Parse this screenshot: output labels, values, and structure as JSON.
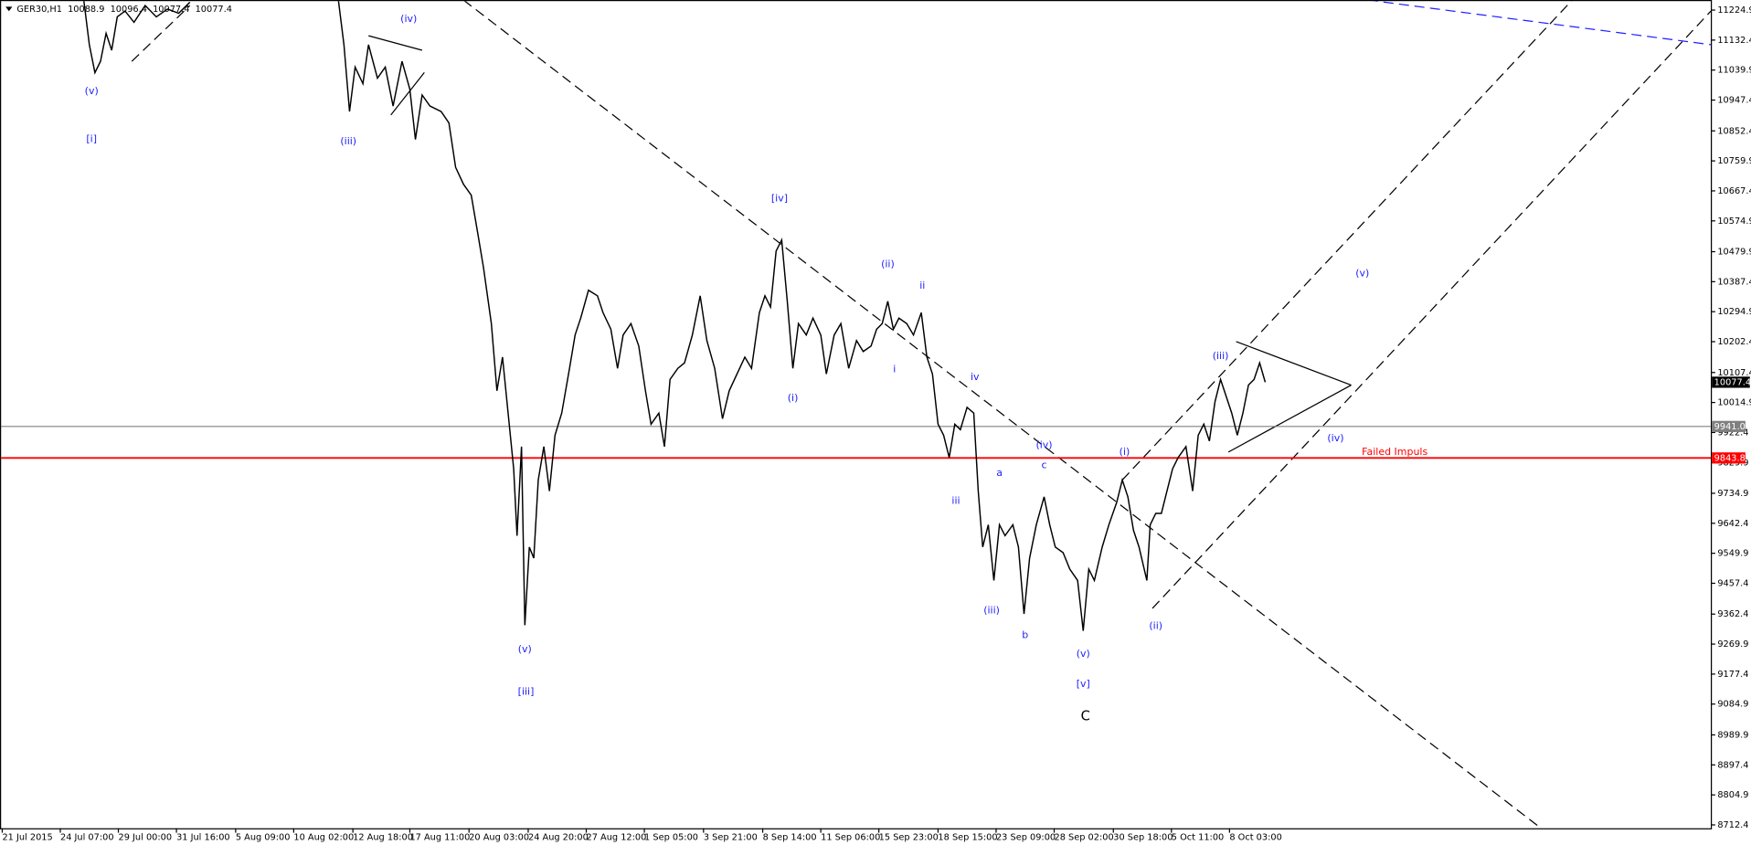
{
  "chart_data": {
    "type": "line",
    "title": "GER30,H1",
    "ohlc": [
      10088.9,
      10096.4,
      10077.4,
      10077.4
    ],
    "color": "#000000",
    "xlim": [
      0,
      1532
    ],
    "ylim": [
      8702,
      11256
    ],
    "xticks": [
      {
        "value": 2,
        "label": "21 Jul 2015"
      },
      {
        "value": 54,
        "label": "24 Jul 07:00"
      },
      {
        "value": 106,
        "label": "29 Jul 00:00"
      },
      {
        "value": 158,
        "label": "31 Jul 16:00"
      },
      {
        "value": 211,
        "label": "5 Aug 09:00"
      },
      {
        "value": 263,
        "label": "10 Aug 02:00"
      },
      {
        "value": 316,
        "label": "12 Aug 18:00"
      },
      {
        "value": 367,
        "label": "17 Aug 11:00"
      },
      {
        "value": 420,
        "label": "20 Aug 03:00"
      },
      {
        "value": 473,
        "label": "24 Aug 20:00"
      },
      {
        "value": 525,
        "label": "27 Aug 12:00"
      },
      {
        "value": 577,
        "label": "1 Sep 05:00"
      },
      {
        "value": 630,
        "label": "3 Sep 21:00"
      },
      {
        "value": 683,
        "label": "8 Sep 14:00"
      },
      {
        "value": 735,
        "label": "11 Sep 06:00"
      },
      {
        "value": 787,
        "label": "15 Sep 23:00"
      },
      {
        "value": 840,
        "label": "18 Sep 15:00"
      },
      {
        "value": 892,
        "label": "23 Sep 09:00"
      },
      {
        "value": 944,
        "label": "28 Sep 02:00"
      },
      {
        "value": 997,
        "label": "30 Sep 18:00"
      },
      {
        "value": 1049,
        "label": "5 Oct 11:00"
      },
      {
        "value": 1101,
        "label": "8 Oct 03:00"
      }
    ],
    "yticks": [
      11224.9,
      11132.4,
      11039.9,
      10947.4,
      10852.4,
      10759.9,
      10667.4,
      10574.9,
      10479.9,
      10387.4,
      10294.9,
      10202.4,
      10107.4,
      10014.9,
      9922.4,
      9829.9,
      9734.9,
      9642.4,
      9549.9,
      9457.4,
      9362.4,
      9269.9,
      9177.4,
      9084.9,
      8989.9,
      8897.4,
      8804.9,
      8712.4
    ],
    "last": 10077.4,
    "hlines": [
      {
        "value": 9941,
        "label": "9941.0",
        "color": "#808080"
      },
      {
        "value": 9843.8,
        "label": "9843.8",
        "color": "#ff0000"
      }
    ],
    "x": [
      75,
      80,
      85,
      90,
      95,
      100,
      105,
      112,
      120,
      130,
      140,
      150,
      160,
      170,
      240,
      303,
      308,
      313,
      318,
      325,
      330,
      338,
      345,
      352,
      360,
      367,
      372,
      378,
      385,
      395,
      402,
      408,
      415,
      422,
      428,
      433,
      440,
      445,
      450,
      455,
      460,
      463,
      467,
      470,
      474,
      478,
      482,
      487,
      492,
      497,
      503,
      510,
      515,
      520,
      527,
      535,
      540,
      547,
      553,
      558,
      565,
      572,
      578,
      583,
      590,
      595,
      600,
      607,
      613,
      620,
      627,
      633,
      640,
      647,
      653,
      660,
      667,
      673,
      680,
      685,
      690,
      695,
      700,
      705,
      710,
      715,
      722,
      728,
      735,
      740,
      747,
      753,
      760,
      767,
      773,
      780,
      785,
      790,
      795,
      800,
      805,
      812,
      818,
      825,
      830,
      835,
      840,
      845,
      850,
      855,
      860,
      866,
      872,
      876,
      880,
      885,
      890,
      895,
      900,
      907,
      912,
      917,
      922,
      928,
      935,
      940,
      945,
      952,
      958,
      965,
      970,
      975,
      980,
      987,
      993,
      1000,
      1005,
      1010,
      1015,
      1020,
      1027,
      1030,
      1035,
      1040,
      1045,
      1050,
      1055,
      1062,
      1068,
      1073,
      1078,
      1083,
      1088,
      1093,
      1098,
      1103,
      1108,
      1113,
      1118,
      1123,
      1128,
      1133
    ],
    "values": [
      11256,
      11118,
      11032,
      11067,
      11153,
      11101,
      11204,
      11222,
      11187,
      11239,
      11204,
      11228,
      11215,
      11249,
      null,
      11256,
      11118,
      10912,
      11049,
      10998,
      11118,
      11015,
      11049,
      10929,
      11067,
      10981,
      10826,
      10963,
      10929,
      10912,
      10877,
      10740,
      10688,
      10654,
      10533,
      10430,
      10258,
      10051,
      10155,
      9982,
      9810,
      9604,
      9879,
      9328,
      9569,
      9535,
      9776,
      9879,
      9742,
      9914,
      9982,
      10120,
      10223,
      10275,
      10361,
      10344,
      10292,
      10241,
      10120,
      10223,
      10258,
      10189,
      10051,
      9948,
      9982,
      9879,
      10086,
      10120,
      10137,
      10223,
      10344,
      10206,
      10120,
      9965,
      10051,
      10103,
      10155,
      10120,
      10292,
      10344,
      10309,
      10482,
      10516,
      10327,
      10120,
      10258,
      10223,
      10275,
      10223,
      10103,
      10223,
      10258,
      10120,
      10206,
      10172,
      10189,
      10241,
      10258,
      10327,
      10241,
      10275,
      10258,
      10223,
      10292,
      10155,
      10103,
      9948,
      9914,
      9845,
      9948,
      9931,
      10000,
      9982,
      9742,
      9569,
      9638,
      9466,
      9638,
      9604,
      9638,
      9569,
      9363,
      9535,
      9638,
      9724,
      9638,
      9569,
      9552,
      9501,
      9466,
      9311,
      9501,
      9466,
      9569,
      9638,
      9707,
      9776,
      9724,
      9621,
      9569,
      9466,
      9638,
      9673,
      9673,
      9742,
      9810,
      9845,
      9879,
      9742,
      9914,
      9948,
      9896,
      10017,
      10086,
      10034,
      9982,
      9914,
      9982,
      10069,
      10086,
      10137,
      10077.4
    ],
    "annotations": [
      {
        "text": "(v)",
        "color": "#2020ff"
      },
      {
        "text": "[i]",
        "color": "#2020ff"
      },
      {
        "text": "(iv)",
        "color": "#2020ff"
      },
      {
        "text": "(iii)",
        "color": "#2020ff"
      },
      {
        "text": "(v)",
        "color": "#2020ff"
      },
      {
        "text": "[iii]",
        "color": "#2020ff"
      },
      {
        "text": "[iv]",
        "color": "#2020ff"
      },
      {
        "text": "(ii)",
        "color": "#2020ff"
      },
      {
        "text": "ii",
        "color": "#2020ff"
      },
      {
        "text": "i",
        "color": "#2020ff"
      },
      {
        "text": "(i)",
        "color": "#2020ff"
      },
      {
        "text": "iv",
        "color": "#2020ff"
      },
      {
        "text": "iii",
        "color": "#2020ff"
      },
      {
        "text": "a",
        "color": "#2020ff"
      },
      {
        "text": "c",
        "color": "#2020ff"
      },
      {
        "text": "(iv)",
        "color": "#2020ff"
      },
      {
        "text": "(iii)",
        "color": "#2020ff"
      },
      {
        "text": "b",
        "color": "#2020ff"
      },
      {
        "text": "(v)",
        "color": "#2020ff"
      },
      {
        "text": "[v]",
        "color": "#2020ff"
      },
      {
        "text": "C",
        "color": "#000000"
      },
      {
        "text": "(i)",
        "color": "#2020ff"
      },
      {
        "text": "(ii)",
        "color": "#2020ff"
      },
      {
        "text": "(iii)",
        "color": "#2020ff"
      },
      {
        "text": "(v)",
        "color": "#2020ff"
      },
      {
        "text": "(iv)",
        "color": "#2020ff"
      },
      {
        "text": "Failed Impuls",
        "color": "#ff0000"
      }
    ]
  }
}
